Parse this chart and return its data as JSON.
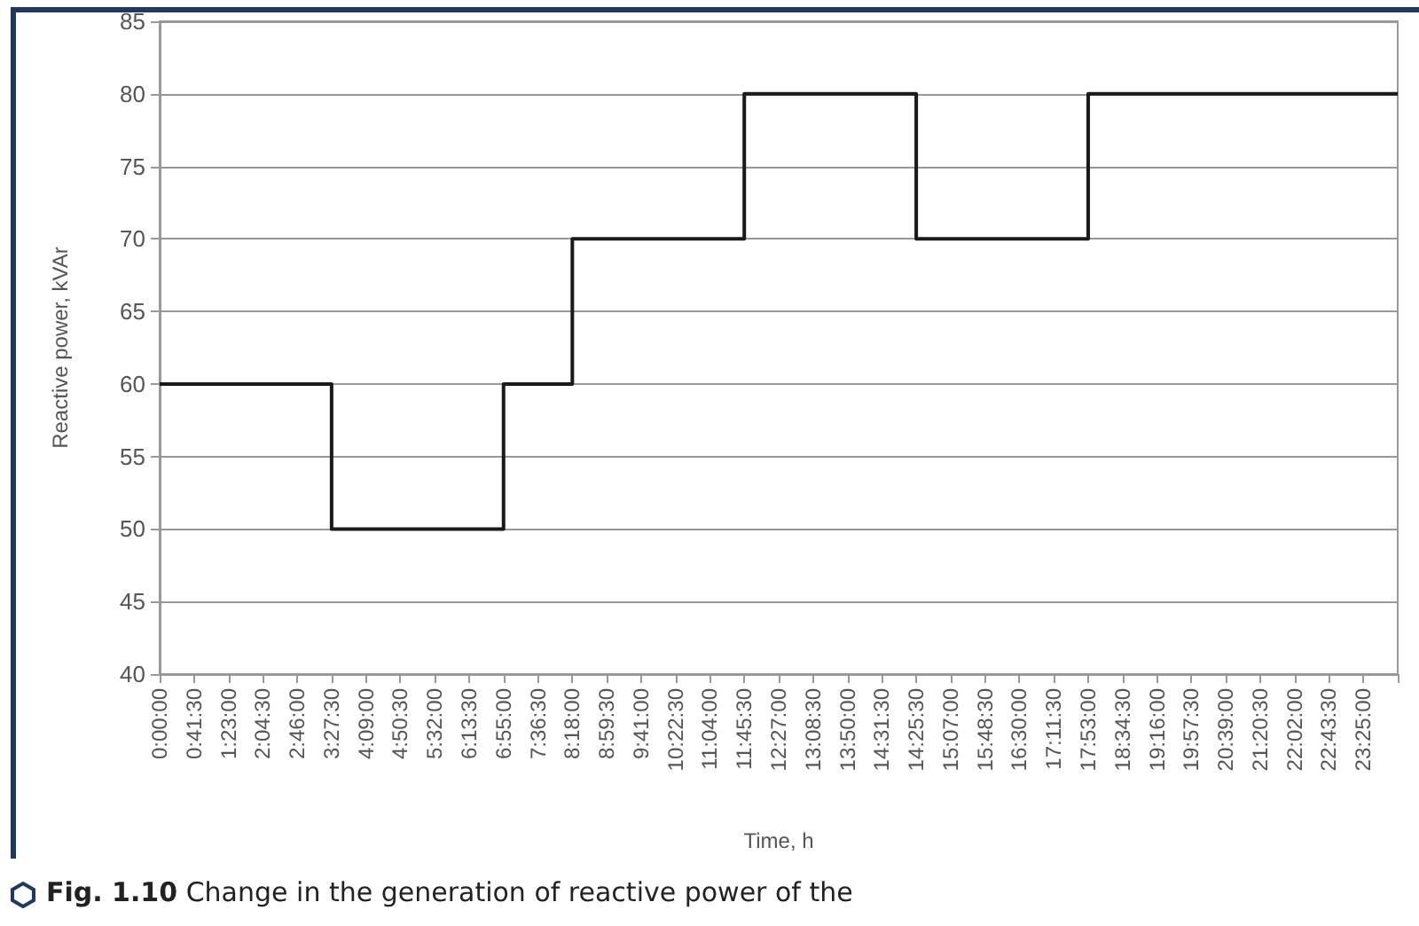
{
  "chart_data": {
    "type": "step",
    "title": "Fig. 1.10 Change in the generation of reactive power of the",
    "xlabel": "Time, h",
    "ylabel": "Reactive power, kVAr",
    "categories": [
      "0:00:00",
      "0:41:30",
      "1:23:00",
      "2:04:30",
      "2:46:00",
      "3:27:30",
      "4:09:00",
      "4:50:30",
      "5:32:00",
      "6:13:30",
      "6:55:00",
      "7:36:30",
      "8:18:00",
      "8:59:30",
      "9:41:00",
      "10:22:30",
      "11:04:00",
      "11:45:30",
      "12:27:00",
      "13:08:30",
      "13:50:00",
      "14:31:30",
      "14:25:30",
      "15:07:00",
      "15:48:30",
      "16:30:00",
      "17:11:30",
      "17:53:00",
      "18:34:30",
      "19:16:00",
      "19:57:30",
      "20:39:00",
      "21:20:30",
      "22:02:00",
      "22:43:30",
      "23:25:00",
      null
    ],
    "values": [
      60,
      60,
      60,
      60,
      60,
      50,
      50,
      50,
      50,
      50,
      60,
      60,
      70,
      70,
      70,
      70,
      70,
      80,
      80,
      80,
      80,
      80,
      70,
      70,
      70,
      70,
      70,
      80,
      80,
      80,
      80,
      80,
      80,
      80,
      80,
      80,
      80
    ],
    "color": "#1a1a1a",
    "ylim": [
      40,
      85
    ],
    "yticks": [
      40,
      45,
      50,
      55,
      60,
      65,
      70,
      75,
      80,
      85
    ],
    "grid": "y",
    "marker": "none",
    "line_style": "solid"
  }
}
